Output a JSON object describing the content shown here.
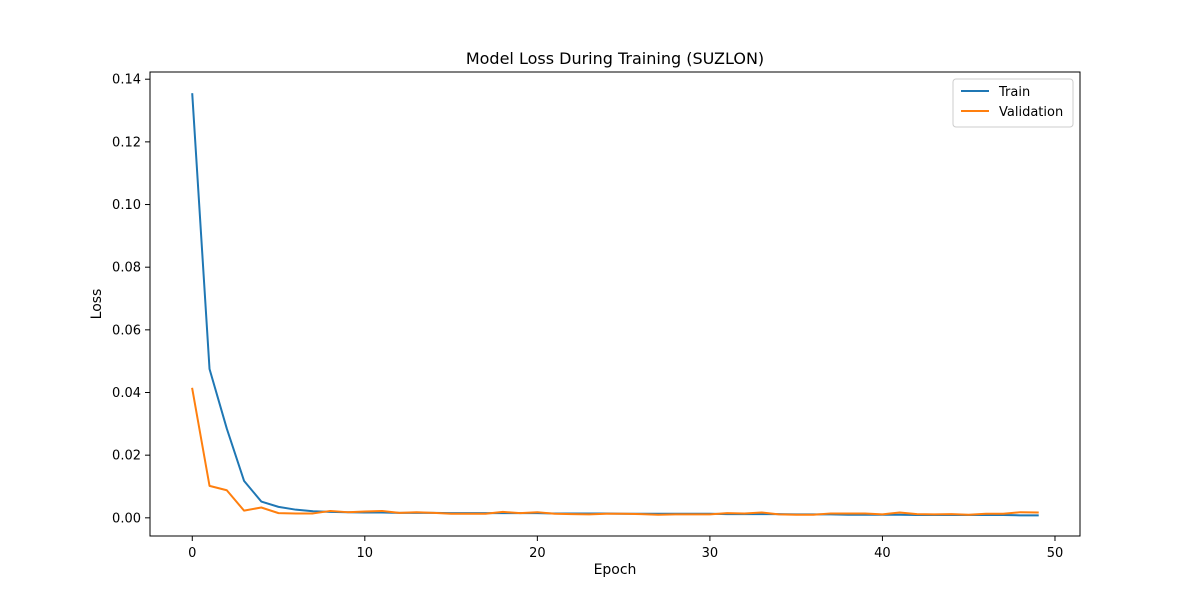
{
  "chart_data": {
    "type": "line",
    "title": "Model Loss During Training (SUZLON)",
    "xlabel": "Epoch",
    "ylabel": "Loss",
    "xlim": [
      -2.45,
      51.45
    ],
    "ylim": [
      -0.0058,
      0.1423
    ],
    "xticks": [
      0,
      10,
      20,
      30,
      40,
      50
    ],
    "xtick_labels": [
      "0",
      "10",
      "20",
      "30",
      "40",
      "50"
    ],
    "yticks": [
      0.0,
      0.02,
      0.04,
      0.06,
      0.08,
      0.1,
      0.12,
      0.14
    ],
    "ytick_labels": [
      "0.00",
      "0.02",
      "0.04",
      "0.06",
      "0.08",
      "0.10",
      "0.12",
      "0.14"
    ],
    "grid": false,
    "legend_position": "top-right",
    "x": [
      0,
      1,
      2,
      3,
      4,
      5,
      6,
      7,
      8,
      9,
      10,
      11,
      12,
      13,
      14,
      15,
      16,
      17,
      18,
      19,
      20,
      21,
      22,
      23,
      24,
      25,
      26,
      27,
      28,
      29,
      30,
      31,
      32,
      33,
      34,
      35,
      36,
      37,
      38,
      39,
      40,
      41,
      42,
      43,
      44,
      45,
      46,
      47,
      48,
      49
    ],
    "series": [
      {
        "name": "Train",
        "color": "#1f77b4",
        "values": [
          0.1352,
          0.0475,
          0.0285,
          0.0118,
          0.0052,
          0.0035,
          0.0026,
          0.0021,
          0.0019,
          0.0018,
          0.0017,
          0.0017,
          0.0016,
          0.0016,
          0.0016,
          0.0015,
          0.0015,
          0.0015,
          0.0015,
          0.0015,
          0.0015,
          0.0014,
          0.0014,
          0.0014,
          0.0014,
          0.0013,
          0.0013,
          0.0013,
          0.0013,
          0.0013,
          0.0013,
          0.0012,
          0.0012,
          0.0012,
          0.0012,
          0.0011,
          0.0011,
          0.0011,
          0.001,
          0.001,
          0.001,
          0.001,
          0.0009,
          0.0009,
          0.0009,
          0.0009,
          0.0009,
          0.0009,
          0.0008,
          0.0008
        ]
      },
      {
        "name": "Validation",
        "color": "#ff7f0e",
        "values": [
          0.0412,
          0.0102,
          0.0088,
          0.0023,
          0.0033,
          0.0015,
          0.0014,
          0.0014,
          0.0022,
          0.0018,
          0.002,
          0.0022,
          0.0016,
          0.0018,
          0.0016,
          0.0013,
          0.0013,
          0.0013,
          0.0019,
          0.0015,
          0.0018,
          0.0013,
          0.0012,
          0.0011,
          0.0013,
          0.0013,
          0.0012,
          0.001,
          0.0011,
          0.0011,
          0.0011,
          0.0015,
          0.0014,
          0.0017,
          0.0011,
          0.001,
          0.001,
          0.0014,
          0.0014,
          0.0014,
          0.0011,
          0.0017,
          0.0012,
          0.0011,
          0.0012,
          0.001,
          0.0013,
          0.0013,
          0.0018,
          0.0017
        ]
      }
    ]
  }
}
